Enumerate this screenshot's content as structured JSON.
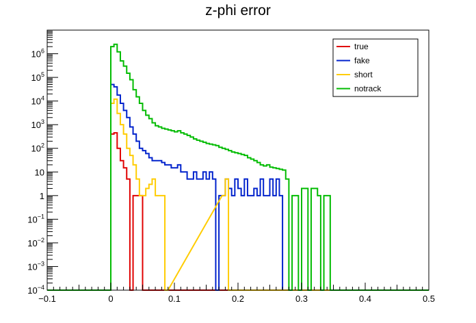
{
  "chart_data": {
    "type": "line",
    "title": "z-phi error",
    "xlabel": "",
    "ylabel": "",
    "xlim": [
      -0.1,
      0.5
    ],
    "ylim": [
      0.0001,
      10000000
    ],
    "yscale": "log",
    "grid": false,
    "legend_position": "top-right",
    "x_ticks": [
      "-0.1",
      "0",
      "0.1",
      "0.2",
      "0.3",
      "0.4",
      "0.5"
    ],
    "y_ticks": [
      {
        "base": "10",
        "exp": "-4"
      },
      {
        "base": "10",
        "exp": "-3"
      },
      {
        "base": "10",
        "exp": "-2"
      },
      {
        "base": "10",
        "exp": "-1"
      },
      {
        "base": "1",
        "exp": ""
      },
      {
        "base": "10",
        "exp": ""
      },
      {
        "base": "10",
        "exp": "2"
      },
      {
        "base": "10",
        "exp": "3"
      },
      {
        "base": "10",
        "exp": "4"
      },
      {
        "base": "10",
        "exp": "5"
      },
      {
        "base": "10",
        "exp": "6"
      }
    ],
    "series": [
      {
        "name": "true",
        "color": "#e00000",
        "x": [
          0.0,
          0.005,
          0.01,
          0.015,
          0.02,
          0.025,
          0.03,
          0.035,
          0.04,
          0.045,
          0.05
        ],
        "y": [
          400,
          450,
          100,
          30,
          15,
          5,
          0.0001,
          1,
          1,
          1,
          0.0001
        ]
      },
      {
        "name": "fake",
        "color": "#0022cc",
        "x": [
          0.0,
          0.005,
          0.01,
          0.015,
          0.02,
          0.025,
          0.03,
          0.035,
          0.04,
          0.045,
          0.05,
          0.055,
          0.06,
          0.065,
          0.07,
          0.075,
          0.08,
          0.085,
          0.09,
          0.095,
          0.1,
          0.105,
          0.11,
          0.115,
          0.12,
          0.125,
          0.13,
          0.135,
          0.14,
          0.145,
          0.15,
          0.155,
          0.16,
          0.165,
          0.17,
          0.175,
          0.18,
          0.185,
          0.19,
          0.195,
          0.2,
          0.205,
          0.21,
          0.215,
          0.22,
          0.225,
          0.23,
          0.235,
          0.24,
          0.245,
          0.25,
          0.255,
          0.26,
          0.265,
          0.27
        ],
        "y": [
          50000,
          40000,
          18000,
          8000,
          4000,
          2000,
          800,
          400,
          200,
          100,
          80,
          60,
          40,
          30,
          30,
          30,
          25,
          20,
          20,
          15,
          15,
          20,
          10,
          10,
          5,
          5,
          10,
          5,
          5,
          10,
          5,
          10,
          5,
          0.0001,
          1,
          1,
          5,
          2,
          1,
          5,
          2,
          1,
          5,
          1,
          1,
          2,
          1,
          5,
          1,
          1,
          5,
          1,
          5,
          1,
          0.0001
        ]
      },
      {
        "name": "short",
        "color": "#ffcc00",
        "x": [
          0.0,
          0.005,
          0.01,
          0.015,
          0.02,
          0.025,
          0.03,
          0.035,
          0.04,
          0.045,
          0.05,
          0.055,
          0.06,
          0.065,
          0.07,
          0.075,
          0.08,
          0.085,
          0.175,
          0.18,
          0.185
        ],
        "y": [
          8000,
          12000,
          3000,
          1000,
          400,
          100,
          50,
          20,
          5,
          1,
          1,
          2,
          3,
          5,
          1,
          1,
          1,
          0.0001,
          1,
          5,
          0.0001
        ]
      },
      {
        "name": "notrack",
        "color": "#00bb00",
        "x": [
          0.0,
          0.005,
          0.01,
          0.015,
          0.02,
          0.025,
          0.03,
          0.035,
          0.04,
          0.045,
          0.05,
          0.055,
          0.06,
          0.065,
          0.07,
          0.075,
          0.08,
          0.085,
          0.09,
          0.095,
          0.1,
          0.105,
          0.11,
          0.115,
          0.12,
          0.125,
          0.13,
          0.135,
          0.14,
          0.145,
          0.15,
          0.155,
          0.16,
          0.165,
          0.17,
          0.175,
          0.18,
          0.185,
          0.19,
          0.195,
          0.2,
          0.205,
          0.21,
          0.215,
          0.22,
          0.225,
          0.23,
          0.235,
          0.24,
          0.245,
          0.25,
          0.255,
          0.26,
          0.265,
          0.27,
          0.275,
          0.28,
          0.285,
          0.29,
          0.295,
          0.3,
          0.305,
          0.31,
          0.315,
          0.32,
          0.325,
          0.33,
          0.335,
          0.34
        ],
        "y": [
          2000000,
          2500000,
          1200000,
          500000,
          300000,
          150000,
          80000,
          30000,
          15000,
          8000,
          4000,
          2500,
          1800,
          1200,
          900,
          800,
          700,
          650,
          600,
          550,
          500,
          550,
          450,
          400,
          350,
          300,
          250,
          220,
          200,
          180,
          160,
          150,
          140,
          130,
          110,
          100,
          90,
          80,
          70,
          65,
          60,
          55,
          50,
          40,
          35,
          30,
          25,
          20,
          18,
          20,
          16,
          15,
          14,
          13,
          12,
          5,
          0.0001,
          1,
          1,
          0.0001,
          2,
          2,
          0.0001,
          2,
          2,
          1,
          0.0001,
          1,
          1
        ]
      }
    ]
  }
}
